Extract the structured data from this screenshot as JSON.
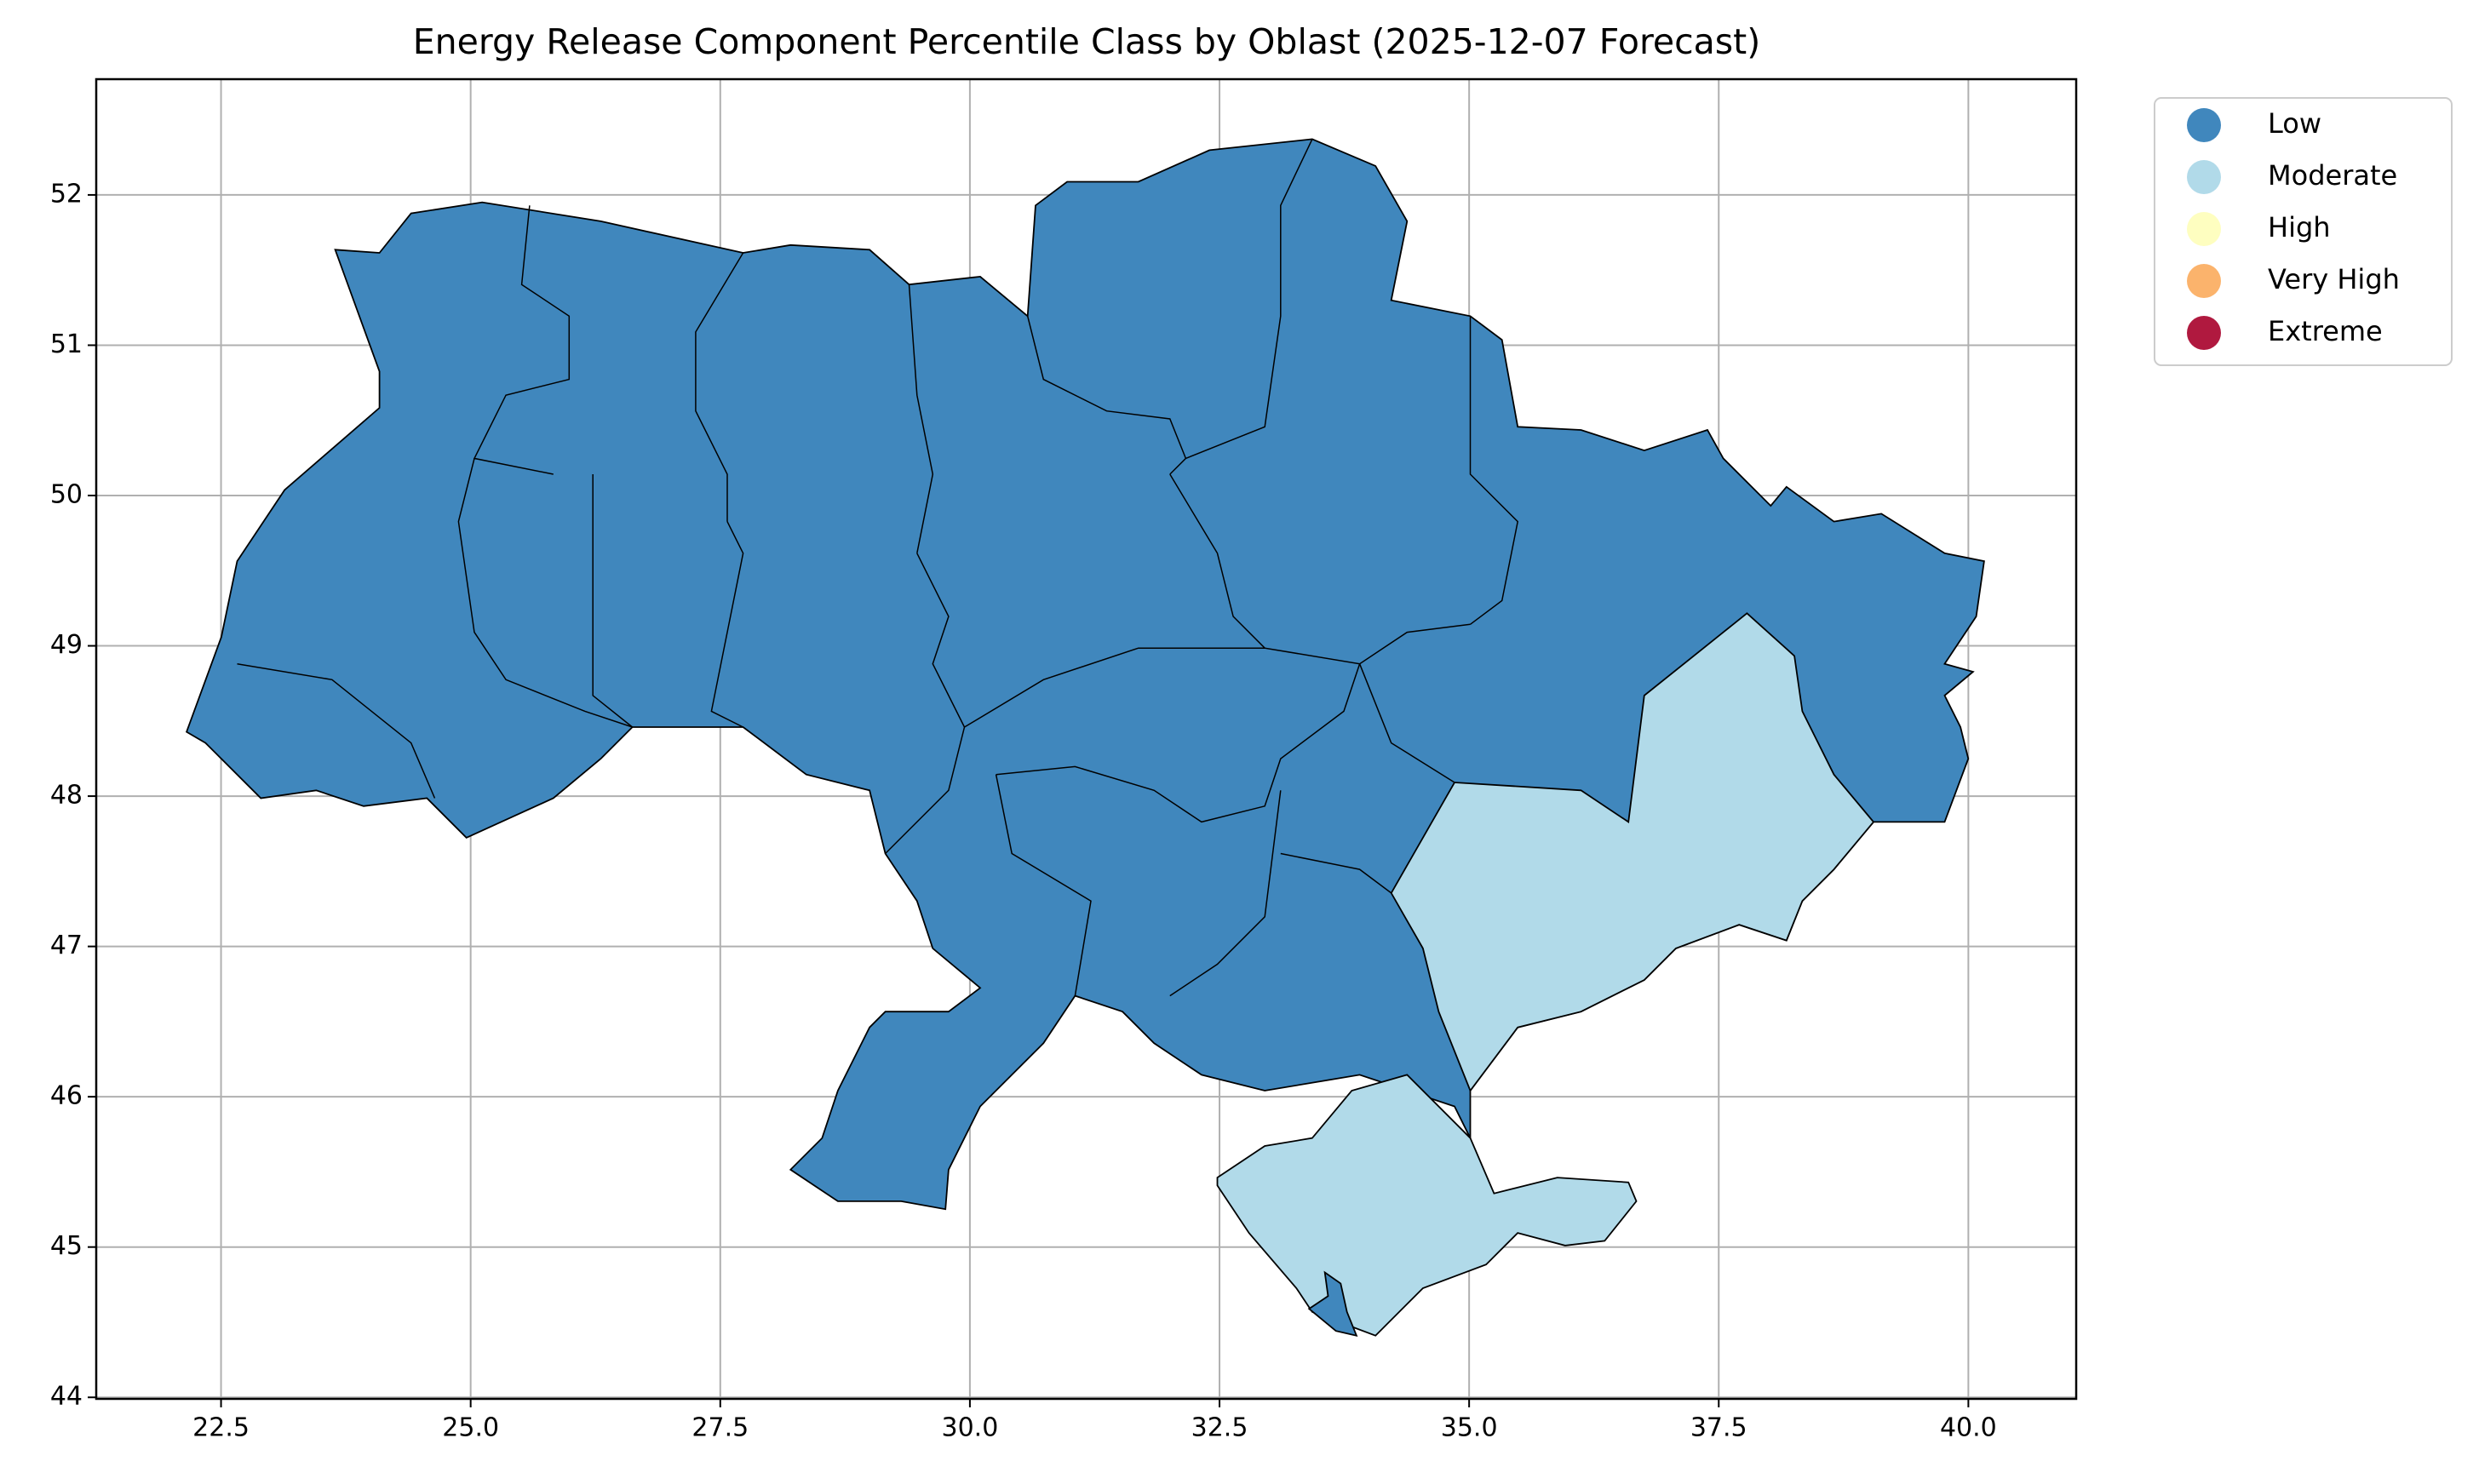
{
  "chart_data": {
    "type": "choropleth",
    "title": "Energy Release Component Percentile Class by Oblast (2025-12-07 Forecast)",
    "xlim": [
      21.25,
      41.08
    ],
    "ylim": [
      43.99,
      52.77
    ],
    "xticks": [
      {
        "value": 22.5,
        "label": "22.5"
      },
      {
        "value": 25,
        "label": "25.0"
      },
      {
        "value": 27.5,
        "label": "27.5"
      },
      {
        "value": 30,
        "label": "30.0"
      },
      {
        "value": 32.5,
        "label": "32.5"
      },
      {
        "value": 35,
        "label": "35.0"
      },
      {
        "value": 37.5,
        "label": "37.5"
      },
      {
        "value": 40,
        "label": "40.0"
      }
    ],
    "yticks": [
      44,
      45,
      46,
      47,
      48,
      49,
      50,
      51,
      52
    ],
    "grid": true,
    "legend": "outside right",
    "legend_items": [
      {
        "name": "Low",
        "color": "#4087bd"
      },
      {
        "name": "Moderate",
        "color": "#b1dae9"
      },
      {
        "name": "High",
        "color": "#fefec0"
      },
      {
        "name": "Very High",
        "color": "#fbb36c"
      },
      {
        "name": "Extreme",
        "color": "#b0193f"
      }
    ]
  }
}
